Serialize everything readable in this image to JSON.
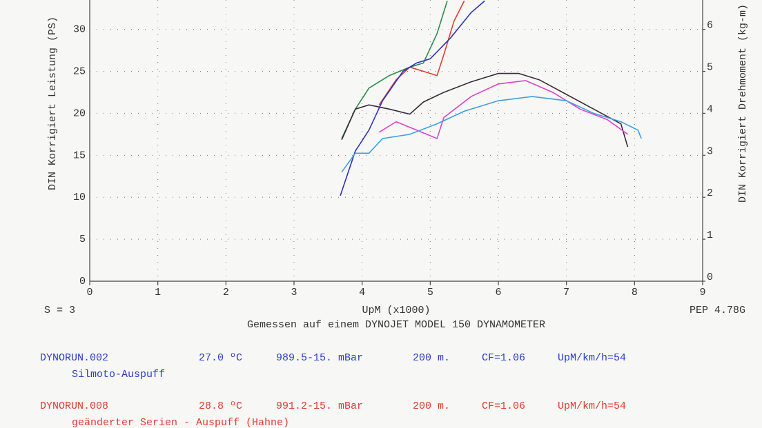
{
  "chart_data": {
    "type": "line",
    "ylabel": "DIN Korrigiert Leistung (PS)",
    "y2label": "DIN Korrigiert Drehmoment (kg-m)",
    "xlabel": "UpM (x1000)",
    "note_left": "S = 3",
    "note_right": "PEP 4.78G",
    "subtitle": "Gemessen auf einem DYNOJET MODEL 150 DYNAMOMETER",
    "xlim": [
      0,
      9
    ],
    "xticks": [
      0,
      1,
      2,
      3,
      4,
      5,
      6,
      7,
      8,
      9
    ],
    "ylim": [
      0,
      33.5
    ],
    "yticks": [
      0,
      5,
      10,
      15,
      20,
      25,
      30
    ],
    "y2lim": [
      0,
      6.7
    ],
    "y2ticks": [
      0,
      1,
      2,
      3,
      4,
      5,
      6
    ],
    "grid": true,
    "series": [
      {
        "color": "#2e8b4a",
        "x": [
          3.7,
          3.9,
          4.1,
          4.4,
          4.7,
          4.9,
          5.1,
          5.25
        ],
        "values": [
          17.0,
          20.5,
          23.0,
          24.5,
          25.5,
          26.0,
          29.5,
          33.4
        ]
      },
      {
        "color": "#e53a2e",
        "x": [
          4.25,
          4.5,
          4.7,
          4.9,
          5.1,
          5.2,
          5.35,
          5.5
        ],
        "values": [
          21.0,
          24.0,
          25.5,
          25.0,
          24.5,
          27.0,
          31.0,
          33.4
        ]
      },
      {
        "color": "#2b2fc4",
        "x": [
          3.68,
          3.9,
          4.1,
          4.3,
          4.6,
          4.8,
          5.0,
          5.3,
          5.6,
          5.8
        ],
        "values": [
          10.2,
          15.5,
          18.0,
          21.5,
          25.0,
          26.0,
          26.5,
          29.0,
          32.0,
          33.4
        ]
      },
      {
        "color": "#3a2a3a",
        "axis": "y2",
        "x": [
          3.7,
          3.9,
          4.1,
          4.4,
          4.7,
          4.9,
          5.2,
          5.6,
          6.0,
          6.3,
          6.6,
          7.0,
          7.4,
          7.8,
          7.9
        ],
        "values": [
          3.37,
          4.1,
          4.2,
          4.1,
          3.98,
          4.27,
          4.5,
          4.75,
          4.95,
          4.95,
          4.8,
          4.45,
          4.1,
          3.75,
          3.2
        ]
      },
      {
        "color": "#e040c8",
        "axis": "y2",
        "x": [
          4.25,
          4.5,
          4.8,
          5.1,
          5.2,
          5.6,
          6.0,
          6.4,
          6.8,
          7.2,
          7.6,
          7.9
        ],
        "values": [
          3.55,
          3.8,
          3.6,
          3.4,
          3.9,
          4.4,
          4.7,
          4.78,
          4.5,
          4.1,
          3.85,
          3.5
        ]
      },
      {
        "color": "#3aa0e8",
        "axis": "y2",
        "x": [
          3.7,
          3.9,
          4.1,
          4.3,
          4.7,
          5.1,
          5.5,
          6.0,
          6.5,
          7.0,
          7.4,
          7.8,
          8.05,
          8.1
        ],
        "values": [
          2.6,
          3.05,
          3.05,
          3.4,
          3.5,
          3.75,
          4.05,
          4.3,
          4.4,
          4.3,
          4.0,
          3.8,
          3.6,
          3.4
        ]
      }
    ]
  },
  "runs": [
    {
      "color": "#2b3ccf",
      "file": "DYNORUN.002",
      "temp": "27.0 ºC",
      "pressure": "989.5-15. mBar",
      "altitude": "200 m.",
      "cf": "CF=1.06",
      "ratio": "UpM/km/h=54",
      "description": "Silmoto-Auspuff"
    },
    {
      "color": "#e53a2e",
      "file": "DYNORUN.008",
      "temp": "28.8 ºC",
      "pressure": "991.2-15. mBar",
      "altitude": "200 m.",
      "cf": "CF=1.06",
      "ratio": "UpM/km/h=54",
      "description": "geänderter Serien - Auspuff (Hahne)"
    }
  ]
}
